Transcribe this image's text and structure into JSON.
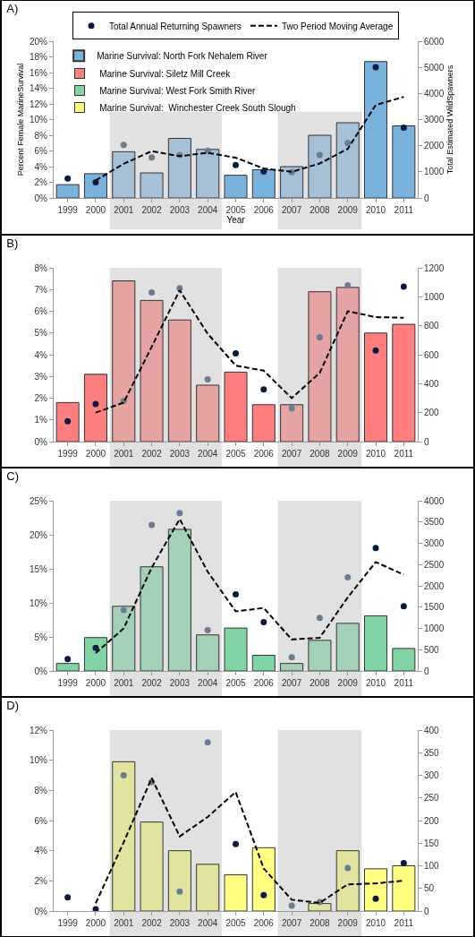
{
  "chart_data": [
    {
      "type": "bar",
      "title": "A)",
      "xlabel": "Year",
      "ylabel": "Percent Female MarineSurvival",
      "y2label": "Total Estimated WildSpawners",
      "legend": "top",
      "categories": [
        "1999",
        "2000",
        "2001",
        "2002",
        "2003",
        "2004",
        "2005",
        "2006",
        "2007",
        "2008",
        "2009",
        "2010",
        "2011"
      ],
      "ylim": [
        0,
        20
      ],
      "yticks": [
        {
          "value": 0,
          "label": "0%"
        },
        {
          "value": 2,
          "label": "2%"
        },
        {
          "value": 4,
          "label": "4%"
        },
        {
          "value": 6,
          "label": "6%"
        },
        {
          "value": 8,
          "label": "8%"
        },
        {
          "value": 10,
          "label": "10%"
        },
        {
          "value": 12,
          "label": "12%"
        },
        {
          "value": 14,
          "label": "14%"
        },
        {
          "value": 16,
          "label": "16%"
        },
        {
          "value": 18,
          "label": "18%"
        },
        {
          "value": 20,
          "label": "20%"
        }
      ],
      "y2lim": [
        0,
        6000
      ],
      "y2ticks": [
        0,
        1000,
        2000,
        3000,
        4000,
        5000,
        6000
      ],
      "bands": [
        {
          "axis": "x",
          "from": "2001",
          "to": "2004",
          "color": "#e1e1e1"
        },
        {
          "axis": "x",
          "from": "2007",
          "to": "2009",
          "color": "#e1e1e1"
        }
      ],
      "series": [
        {
          "name": "Marine Survival: North Fork Nehalem River",
          "colors": [
            "#7ab2de",
            "#7ab2de",
            "#a6c0d6",
            "#a6c0d6",
            "#a6c0d6",
            "#a6c0d6",
            "#7ab2de",
            "#7ab2de",
            "#a6c0d6",
            "#a6c0d6",
            "#a6c0d6",
            "#7ab2de",
            "#7ab2de"
          ],
          "values": [
            1.7,
            3.1,
            5.9,
            3.2,
            7.6,
            6.2,
            2.9,
            3.6,
            4.0,
            8.0,
            9.6,
            17.4,
            9.2
          ]
        },
        {
          "type": "scatter",
          "axis": "y2",
          "marker": "circle",
          "name": "Total Annual Returning Spawners",
          "colors": [
            "#0a1a40",
            "#0a1a40",
            "#6b7b90",
            "#6b7b90",
            "#6b7b90",
            "#6b7b90",
            "#0a1a40",
            "#0a1a40",
            "#6b7b90",
            "#6b7b90",
            "#6b7b90",
            "#0a1a40",
            "#0a1a40"
          ],
          "values": [
            750,
            600,
            2030,
            1550,
            1650,
            1810,
            1260,
            1010,
            990,
            1650,
            2100,
            5010,
            2690
          ]
        },
        {
          "type": "line",
          "axis": "y2",
          "line_style": "dashed",
          "name": "Two Period Moving Average",
          "color": "#000000",
          "values": [
            null,
            670,
            1310,
            1790,
            1600,
            1730,
            1540,
            1130,
            1000,
            1320,
            1880,
            3560,
            3870
          ]
        }
      ]
    },
    {
      "type": "bar",
      "title": "B)",
      "categories": [
        "1999",
        "2000",
        "2001",
        "2002",
        "2003",
        "2004",
        "2005",
        "2006",
        "2007",
        "2008",
        "2009",
        "2010",
        "2011"
      ],
      "ylim": [
        0,
        8
      ],
      "yticks": [
        {
          "value": 0,
          "label": "0%"
        },
        {
          "value": 1,
          "label": "1%"
        },
        {
          "value": 2,
          "label": "2%"
        },
        {
          "value": 3,
          "label": "3%"
        },
        {
          "value": 4,
          "label": "4%"
        },
        {
          "value": 5,
          "label": "5%"
        },
        {
          "value": 6,
          "label": "6%"
        },
        {
          "value": 7,
          "label": "7%"
        },
        {
          "value": 8,
          "label": "8%"
        }
      ],
      "y2lim": [
        0,
        1200
      ],
      "y2ticks": [
        0,
        200,
        400,
        600,
        800,
        1000,
        1200
      ],
      "bands": [
        {
          "axis": "x",
          "from": "2001",
          "to": "2004",
          "color": "#e1e1e1"
        },
        {
          "axis": "x",
          "from": "2007",
          "to": "2009",
          "color": "#e1e1e1"
        }
      ],
      "series": [
        {
          "name": "Marine Survival: Siletz Mill Creek",
          "color": "#ff7f7f",
          "colors": [
            "#ff7f7f",
            "#ff7f7f",
            "#e5a3a3",
            "#e5a3a3",
            "#e5a3a3",
            "#e5a3a3",
            "#ff7f7f",
            "#ff7f7f",
            "#e5a3a3",
            "#e5a3a3",
            "#e5a3a3",
            "#ff7f7f",
            "#ff7f7f"
          ],
          "values": [
            1.8,
            3.1,
            7.4,
            6.5,
            5.6,
            2.6,
            3.2,
            1.7,
            1.7,
            6.9,
            7.1,
            5.0,
            5.4
          ]
        },
        {
          "type": "scatter",
          "axis": "y2",
          "marker": "circle",
          "colors": [
            "#0a1a40",
            "#0a1a40",
            "#6b7b90",
            "#6b7b90",
            "#6b7b90",
            "#6b7b90",
            "#0a1a40",
            "#0a1a40",
            "#6b7b90",
            "#6b7b90",
            "#6b7b90",
            "#0a1a40",
            "#0a1a40"
          ],
          "values": [
            140,
            260,
            280,
            1030,
            1060,
            430,
            610,
            360,
            230,
            720,
            1080,
            630,
            1070
          ]
        },
        {
          "type": "line",
          "axis": "y2",
          "line_style": "dashed",
          "color": "#000000",
          "values": [
            null,
            200,
            270,
            655,
            1045,
            745,
            525,
            490,
            300,
            475,
            900,
            860,
            855
          ]
        }
      ]
    },
    {
      "type": "bar",
      "title": "C)",
      "categories": [
        "1999",
        "2000",
        "2001",
        "2002",
        "2003",
        "2004",
        "2005",
        "2006",
        "2007",
        "2008",
        "2009",
        "2010",
        "2011"
      ],
      "ylim": [
        0,
        25
      ],
      "yticks": [
        {
          "value": 0,
          "label": "0%"
        },
        {
          "value": 5,
          "label": "5%"
        },
        {
          "value": 10,
          "label": "10%"
        },
        {
          "value": 15,
          "label": "15%"
        },
        {
          "value": 20,
          "label": "20%"
        },
        {
          "value": 25,
          "label": "25%"
        }
      ],
      "y2lim": [
        0,
        4000
      ],
      "y2ticks": [
        0,
        500,
        1000,
        1500,
        2000,
        2500,
        3000,
        3500,
        4000
      ],
      "bands": [
        {
          "axis": "x",
          "from": "2001",
          "to": "2004",
          "color": "#e1e1e1"
        },
        {
          "axis": "x",
          "from": "2007",
          "to": "2009",
          "color": "#e1e1e1"
        }
      ],
      "series": [
        {
          "name": "Marine Survival: West Fork Smith River",
          "color": "#7fd6a4",
          "colors": [
            "#7fd6a4",
            "#7fd6a4",
            "#a3d1b8",
            "#a3d1b8",
            "#a3d1b8",
            "#a3d1b8",
            "#7fd6a4",
            "#7fd6a4",
            "#a3d1b8",
            "#a3d1b8",
            "#a3d1b8",
            "#7fd6a4",
            "#7fd6a4"
          ],
          "values": [
            1.1,
            4.9,
            9.5,
            15.3,
            20.8,
            5.3,
            6.3,
            2.3,
            1.1,
            4.5,
            7.0,
            8.1,
            3.3
          ]
        },
        {
          "type": "scatter",
          "axis": "y2",
          "marker": "circle",
          "colors": [
            "#0a1a40",
            "#0a1a40",
            "#6b7b90",
            "#6b7b90",
            "#6b7b90",
            "#6b7b90",
            "#0a1a40",
            "#0a1a40",
            "#6b7b90",
            "#6b7b90",
            "#6b7b90",
            "#0a1a40",
            "#0a1a40"
          ],
          "values": [
            280,
            540,
            1430,
            3430,
            3710,
            960,
            1800,
            1150,
            320,
            1250,
            2200,
            2890,
            1520
          ]
        },
        {
          "type": "line",
          "axis": "y2",
          "line_style": "dashed",
          "color": "#000000",
          "values": [
            null,
            420,
            1000,
            2430,
            3570,
            2330,
            1400,
            1480,
            740,
            780,
            1730,
            2560,
            2260
          ]
        }
      ]
    },
    {
      "type": "bar",
      "title": "D)",
      "categories": [
        "1999",
        "2000",
        "2001",
        "2002",
        "2003",
        "2004",
        "2005",
        "2006",
        "2007",
        "2008",
        "2009",
        "2010",
        "2011"
      ],
      "ylim": [
        0,
        12
      ],
      "yticks": [
        {
          "value": 0,
          "label": "0%"
        },
        {
          "value": 2,
          "label": "2%"
        },
        {
          "value": 4,
          "label": "4%"
        },
        {
          "value": 6,
          "label": "6%"
        },
        {
          "value": 8,
          "label": "8%"
        },
        {
          "value": 10,
          "label": "10%"
        },
        {
          "value": 12,
          "label": "12%"
        }
      ],
      "y2lim": [
        0,
        400
      ],
      "y2ticks": [
        0,
        50,
        100,
        150,
        200,
        250,
        300,
        350,
        400
      ],
      "bands": [
        {
          "axis": "x",
          "from": "2001",
          "to": "2004",
          "color": "#e1e1e1"
        },
        {
          "axis": "x",
          "from": "2007",
          "to": "2009",
          "color": "#e1e1e1"
        }
      ],
      "series": [
        {
          "name": "Marine Survival:  Winchester Creek South Slough",
          "color": "#ffff80",
          "colors": [
            "#ffff80",
            "#ffff80",
            "#e3e3a0",
            "#e3e3a0",
            "#e3e3a0",
            "#e3e3a0",
            "#ffff80",
            "#ffff80",
            "#e3e3a0",
            "#e3e3a0",
            "#e3e3a0",
            "#ffff80",
            "#ffff80"
          ],
          "values": [
            null,
            null,
            9.9,
            5.9,
            4.0,
            3.1,
            2.4,
            4.2,
            null,
            0.5,
            4.0,
            2.8,
            3.0
          ]
        },
        {
          "type": "scatter",
          "axis": "y2",
          "marker": "circle",
          "colors": [
            "#0a1a40",
            "#0a1a40",
            "#6b7b90",
            "#6b7b90",
            "#6b7b90",
            "#6b7b90",
            "#0a1a40",
            "#0a1a40",
            "#6b7b90",
            "#6b7b90",
            "#6b7b90",
            "#0a1a40",
            "#0a1a40"
          ],
          "values": [
            30,
            4,
            300,
            285,
            43,
            373,
            148,
            35,
            12,
            20,
            95,
            27,
            106
          ]
        },
        {
          "type": "line",
          "axis": "y2",
          "line_style": "dashed",
          "color": "#000000",
          "values": [
            null,
            17,
            152,
            294,
            165,
            208,
            263,
            94,
            25,
            18,
            59,
            61,
            67
          ]
        }
      ]
    }
  ]
}
